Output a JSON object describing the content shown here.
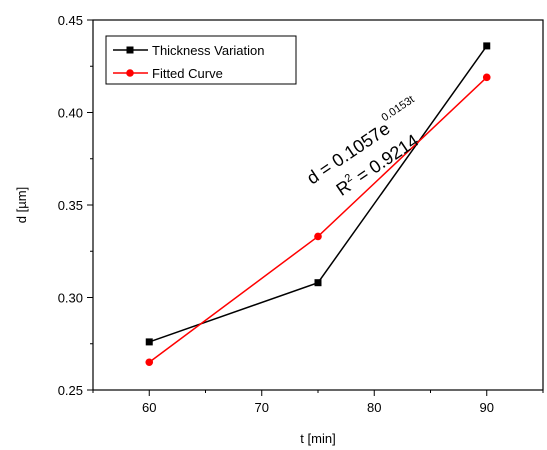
{
  "chart_data": {
    "type": "line",
    "title": "",
    "xlabel": "t [min]",
    "ylabel": "d [µm]",
    "xlim": [
      55,
      95
    ],
    "ylim": [
      0.25,
      0.45
    ],
    "x_ticks": [
      "60",
      "70",
      "80",
      "90"
    ],
    "y_ticks": [
      "0.25",
      "0.30",
      "0.35",
      "0.40",
      "0.45"
    ],
    "x": [
      60,
      75,
      90
    ],
    "series": [
      {
        "name": "Thickness Variation",
        "color": "#000000",
        "marker": "square",
        "values": [
          0.276,
          0.308,
          0.436
        ]
      },
      {
        "name": "Fitted Curve",
        "color": "#ff0000",
        "marker": "circle",
        "values": [
          0.265,
          0.333,
          0.419
        ]
      }
    ],
    "legend_position": "top-left",
    "annotation": {
      "eq_prefix": "d = 0.1057e",
      "eq_exponent": "0.0153t",
      "r_prefix": "R",
      "r_sup": "2",
      "r_suffix": " = 0.9214"
    },
    "grid": false
  }
}
